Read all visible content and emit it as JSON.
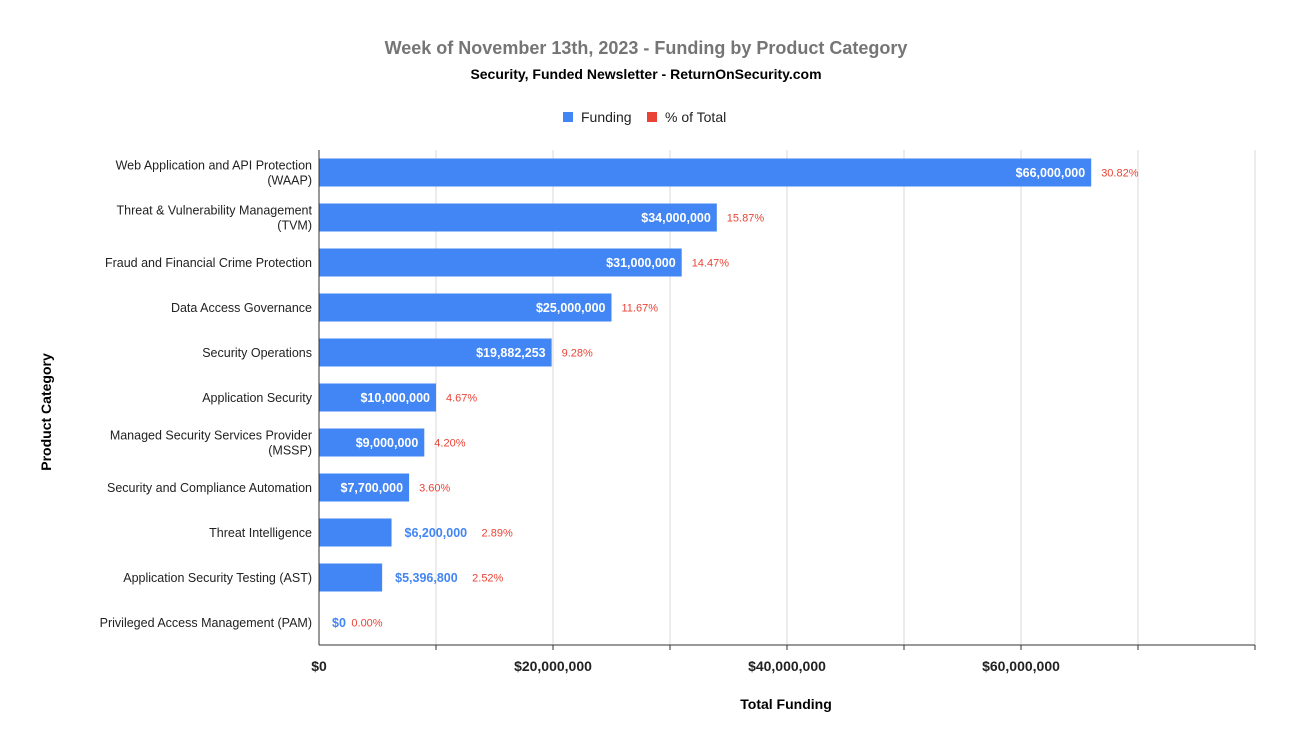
{
  "colors": {
    "funding": "#4285f4",
    "percent": "#ea4335",
    "grid": "#d9d9d9",
    "axis": "#333333"
  },
  "chart_data": {
    "type": "bar",
    "orientation": "horizontal",
    "title": "Week of November 13th, 2023 - Funding by Product Category",
    "subtitle": "Security, Funded Newsletter - ReturnOnSecurity.com",
    "xlabel": "Total Funding",
    "ylabel": "Product Category",
    "xlim": [
      0,
      80000000
    ],
    "x_ticks": [
      0,
      20000000,
      40000000,
      60000000
    ],
    "x_tick_labels": [
      "$0",
      "$20,000,000",
      "$40,000,000",
      "$60,000,000"
    ],
    "legend": {
      "position": "top",
      "entries": [
        {
          "name": "Funding",
          "color": "#4285f4"
        },
        {
          "name": "% of Total",
          "color": "#ea4335"
        }
      ]
    },
    "grid": true,
    "categories": [
      {
        "lines": [
          "Web Application and API Protection",
          "(WAAP)"
        ]
      },
      {
        "lines": [
          "Threat & Vulnerability Management",
          "(TVM)"
        ]
      },
      {
        "lines": [
          "Fraud and Financial Crime Protection"
        ]
      },
      {
        "lines": [
          "Data Access Governance"
        ]
      },
      {
        "lines": [
          "Security Operations"
        ]
      },
      {
        "lines": [
          "Application Security"
        ]
      },
      {
        "lines": [
          "Managed Security Services Provider",
          "(MSSP)"
        ]
      },
      {
        "lines": [
          "Security and Compliance Automation"
        ]
      },
      {
        "lines": [
          "Threat Intelligence"
        ]
      },
      {
        "lines": [
          "Application Security Testing (AST)"
        ]
      },
      {
        "lines": [
          "Privileged Access Management (PAM)"
        ]
      }
    ],
    "series": [
      {
        "name": "Funding",
        "values": [
          66000000,
          34000000,
          31000000,
          25000000,
          19882253,
          10000000,
          9000000,
          7700000,
          6200000,
          5396800,
          0
        ],
        "labels": [
          "$66,000,000",
          "$34,000,000",
          "$31,000,000",
          "$25,000,000",
          "$19,882,253",
          "$10,000,000",
          "$9,000,000",
          "$7,700,000",
          "$6,200,000",
          "$5,396,800",
          "$0"
        ]
      },
      {
        "name": "% of Total",
        "values": [
          30.82,
          15.87,
          14.47,
          11.67,
          9.28,
          4.67,
          4.2,
          3.6,
          2.89,
          2.52,
          0.0
        ],
        "labels": [
          "30.82%",
          "15.87%",
          "14.47%",
          "11.67%",
          "9.28%",
          "4.67%",
          "4.20%",
          "3.60%",
          "2.89%",
          "2.52%",
          "0.00%"
        ]
      }
    ]
  }
}
